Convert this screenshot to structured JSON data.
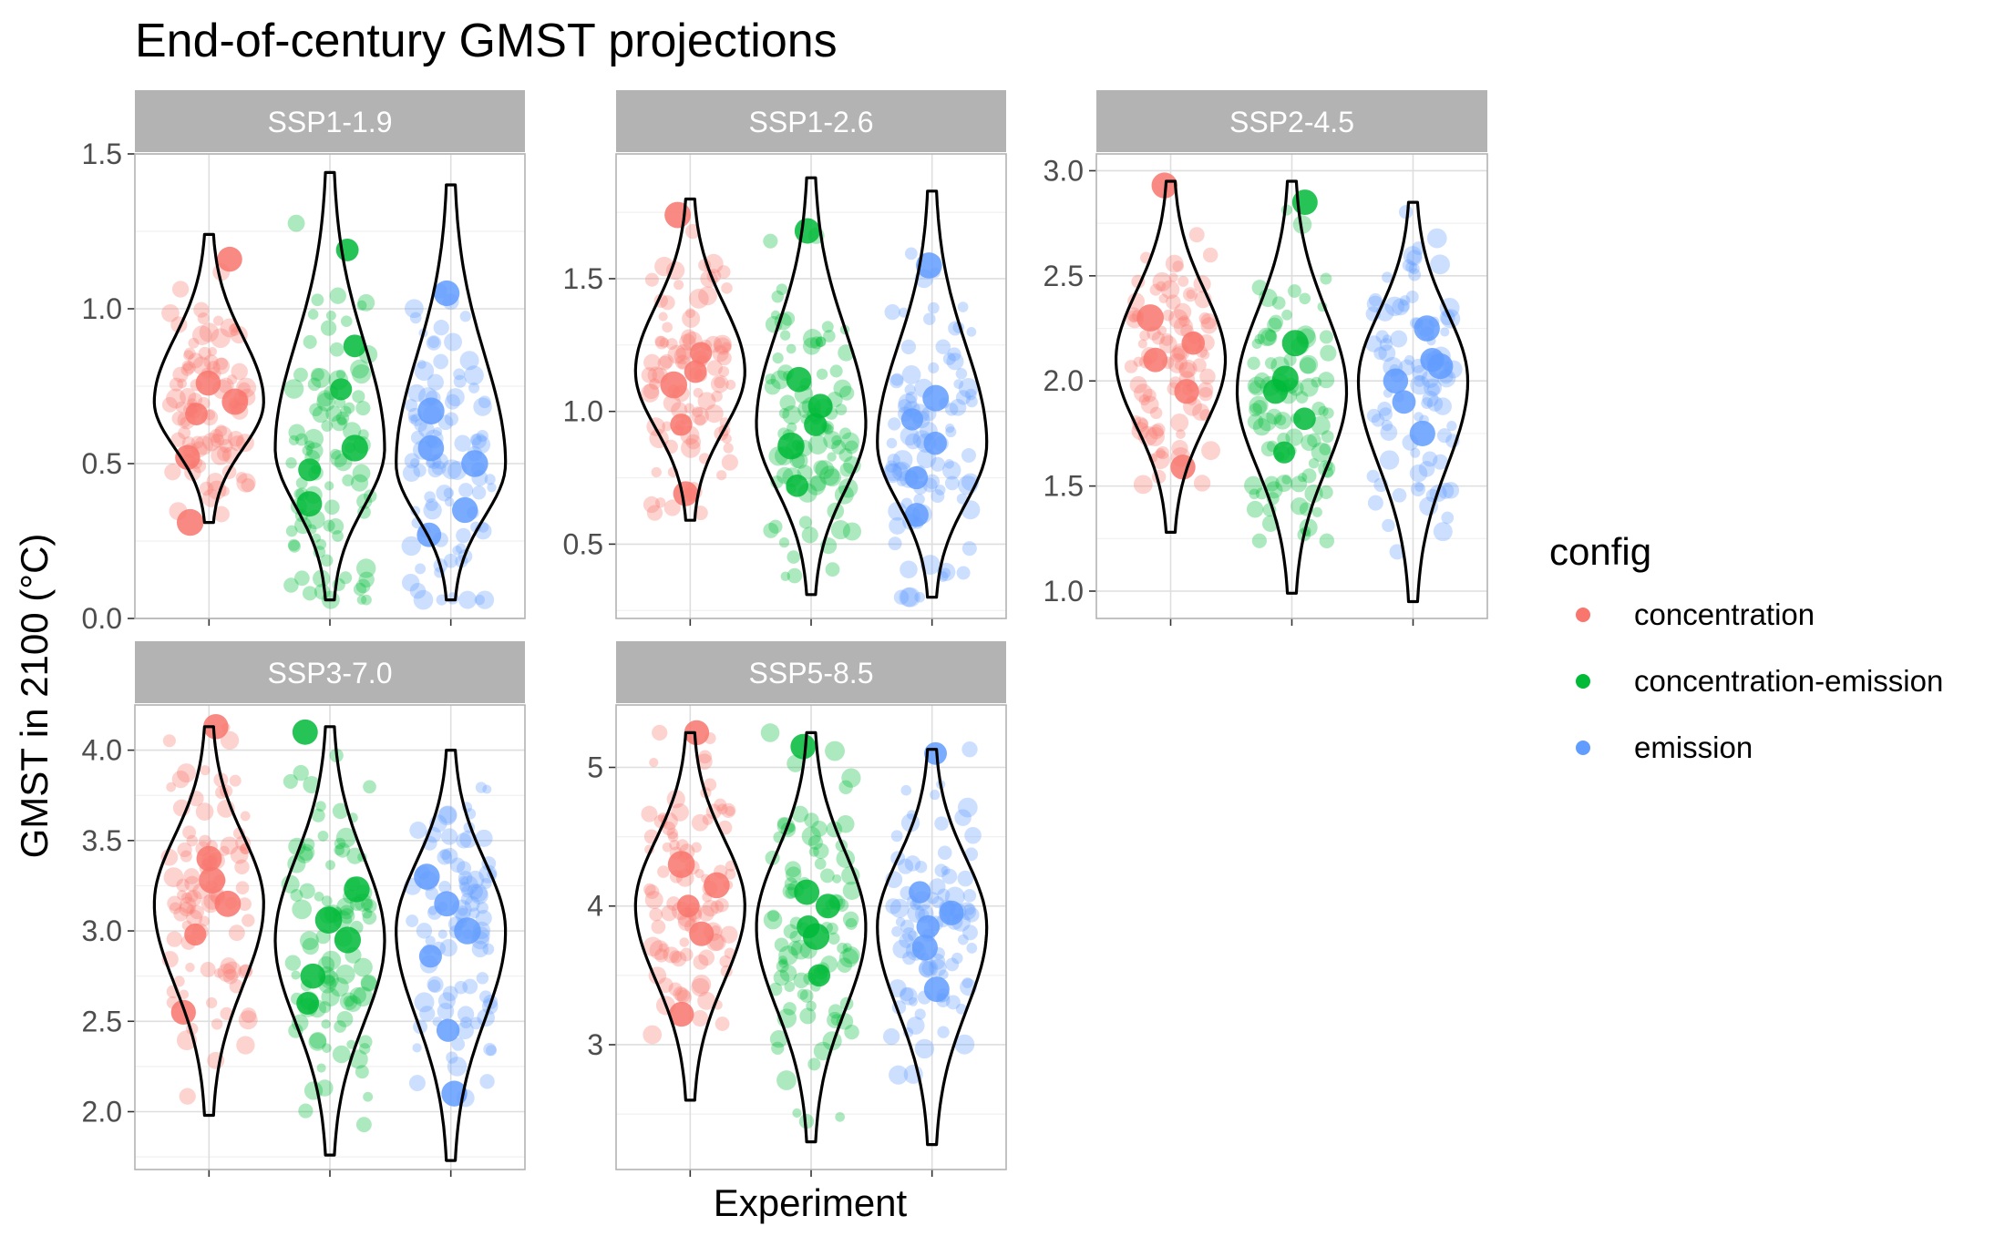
{
  "chart_data": {
    "type": "violin-jitter",
    "title": "End-of-century GMST projections",
    "xlabel": "Experiment",
    "ylabel": "GMST in 2100 (°C)",
    "legend": {
      "title": "config",
      "placement": "right",
      "entries": [
        {
          "name": "concentration",
          "color": "#F8766D"
        },
        {
          "name": "concentration-emission",
          "color": "#00BA38"
        },
        {
          "name": "emission",
          "color": "#619CFF"
        }
      ]
    },
    "grid": true,
    "panels": [
      {
        "label": "SSP1-1.9",
        "ylim": [
          0,
          1.5
        ],
        "yticks": [
          0.0,
          0.5,
          1.0,
          1.5
        ],
        "ytick_labels": [
          "0.0",
          "0.5",
          "1.0",
          "1.5"
        ],
        "series": [
          {
            "name": "concentration",
            "min": 0.31,
            "max": 1.24,
            "mode": 0.7,
            "mid": [
              0.7,
              0.66,
              1.16,
              0.52,
              0.31,
              0.76
            ]
          },
          {
            "name": "concentration-emission",
            "min": 0.06,
            "max": 1.44,
            "mode": 0.55,
            "mid": [
              0.55,
              0.74,
              1.19,
              0.37,
              0.48,
              0.88
            ]
          },
          {
            "name": "emission",
            "min": 0.06,
            "max": 1.4,
            "mode": 0.5,
            "mid": [
              0.5,
              0.67,
              0.35,
              0.55,
              0.27,
              1.05
            ]
          }
        ]
      },
      {
        "label": "SSP1-2.6",
        "ylim": [
          0.22,
          1.97
        ],
        "yticks": [
          0.5,
          1.0,
          1.5
        ],
        "ytick_labels": [
          "0.5",
          "1.0",
          "1.5"
        ],
        "series": [
          {
            "name": "concentration",
            "min": 0.59,
            "max": 1.8,
            "mode": 1.15,
            "mid": [
              1.15,
              1.22,
              0.95,
              0.69,
              1.74,
              1.1
            ]
          },
          {
            "name": "concentration-emission",
            "min": 0.31,
            "max": 1.88,
            "mode": 0.95,
            "mid": [
              0.95,
              0.87,
              1.12,
              1.68,
              0.72,
              1.02
            ]
          },
          {
            "name": "emission",
            "min": 0.3,
            "max": 1.83,
            "mode": 0.88,
            "mid": [
              0.88,
              1.05,
              0.75,
              1.55,
              0.61,
              0.97
            ]
          }
        ]
      },
      {
        "label": "SSP2-4.5",
        "ylim": [
          0.87,
          3.08
        ],
        "yticks": [
          1.0,
          1.5,
          2.0,
          2.5,
          3.0
        ],
        "ytick_labels": [
          "1.0",
          "1.5",
          "2.0",
          "2.5",
          "3.0"
        ],
        "series": [
          {
            "name": "concentration",
            "min": 1.28,
            "max": 2.95,
            "mode": 2.1,
            "mid": [
              2.1,
              2.3,
              1.95,
              1.59,
              2.93,
              2.18
            ]
          },
          {
            "name": "concentration-emission",
            "min": 0.99,
            "max": 2.95,
            "mode": 1.95,
            "mid": [
              1.95,
              2.18,
              1.82,
              2.85,
              1.66,
              2.01
            ]
          },
          {
            "name": "emission",
            "min": 0.95,
            "max": 2.85,
            "mode": 2.0,
            "mid": [
              2.0,
              2.07,
              1.75,
              2.25,
              1.9,
              2.1
            ]
          }
        ]
      },
      {
        "label": "SSP3-7.0",
        "ylim": [
          1.68,
          4.25
        ],
        "yticks": [
          2.0,
          2.5,
          3.0,
          3.5,
          4.0
        ],
        "ytick_labels": [
          "2.0",
          "2.5",
          "3.0",
          "3.5",
          "4.0"
        ],
        "series": [
          {
            "name": "concentration",
            "min": 1.98,
            "max": 4.13,
            "mode": 3.15,
            "mid": [
              3.15,
              3.28,
              2.98,
              2.55,
              3.4,
              4.13
            ]
          },
          {
            "name": "concentration-emission",
            "min": 1.76,
            "max": 4.13,
            "mode": 2.95,
            "mid": [
              2.95,
              3.23,
              2.75,
              4.1,
              3.06,
              2.6
            ]
          },
          {
            "name": "emission",
            "min": 1.73,
            "max": 4.0,
            "mode": 3.0,
            "mid": [
              3.0,
              3.15,
              2.86,
              3.3,
              2.45,
              2.1
            ]
          }
        ]
      },
      {
        "label": "SSP5-8.5",
        "ylim": [
          2.1,
          5.45
        ],
        "yticks": [
          3,
          4,
          5
        ],
        "ytick_labels": [
          "3",
          "4",
          "5"
        ],
        "series": [
          {
            "name": "concentration",
            "min": 2.6,
            "max": 5.25,
            "mode": 4.0,
            "mid": [
              4.0,
              4.15,
              3.8,
              3.22,
              5.25,
              4.3
            ]
          },
          {
            "name": "concentration-emission",
            "min": 2.3,
            "max": 5.25,
            "mode": 3.85,
            "mid": [
              3.85,
              4.1,
              3.5,
              5.15,
              3.78,
              4.0
            ]
          },
          {
            "name": "emission",
            "min": 2.28,
            "max": 5.13,
            "mode": 3.85,
            "mid": [
              3.85,
              3.95,
              3.4,
              3.7,
              5.1,
              4.1
            ]
          }
        ]
      }
    ]
  }
}
